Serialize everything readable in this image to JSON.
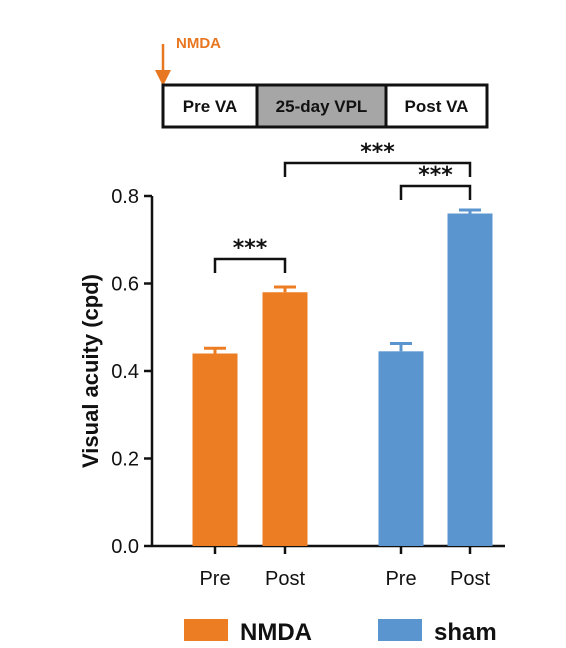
{
  "timeline": {
    "injection_label": "NMDA",
    "injection_color": "#e87722",
    "boxes": [
      {
        "label": "Pre VA",
        "fill": "#ffffff"
      },
      {
        "label": "25-day VPL",
        "fill": "#a6a6a6"
      },
      {
        "label": "Post VA",
        "fill": "#ffffff"
      }
    ]
  },
  "chart_data": {
    "type": "bar",
    "title": "",
    "xlabel": "",
    "ylabel": "Visual acuity (cpd)",
    "ylim": [
      0,
      0.8
    ],
    "yticks": [
      "0.0",
      "0.2",
      "0.4",
      "0.6",
      "0.8"
    ],
    "groups": [
      {
        "name": "NMDA",
        "color": "#ed7d22",
        "bars": [
          {
            "category": "Pre",
            "value": 0.44,
            "error": 0.012
          },
          {
            "category": "Post",
            "value": 0.58,
            "error": 0.012
          }
        ]
      },
      {
        "name": "sham",
        "color": "#5b95cf",
        "bars": [
          {
            "category": "Pre",
            "value": 0.445,
            "error": 0.018
          },
          {
            "category": "Post",
            "value": 0.76,
            "error": 0.008
          }
        ]
      }
    ],
    "significance": [
      {
        "from": "NMDA.Pre",
        "to": "NMDA.Post",
        "label": "***"
      },
      {
        "from": "sham.Pre",
        "to": "sham.Post",
        "label": "***"
      },
      {
        "from": "NMDA.Post",
        "to": "sham.Post",
        "label": "***"
      }
    ],
    "legend": {
      "placement": "bottom",
      "entries": [
        "NMDA",
        "sham"
      ]
    }
  }
}
